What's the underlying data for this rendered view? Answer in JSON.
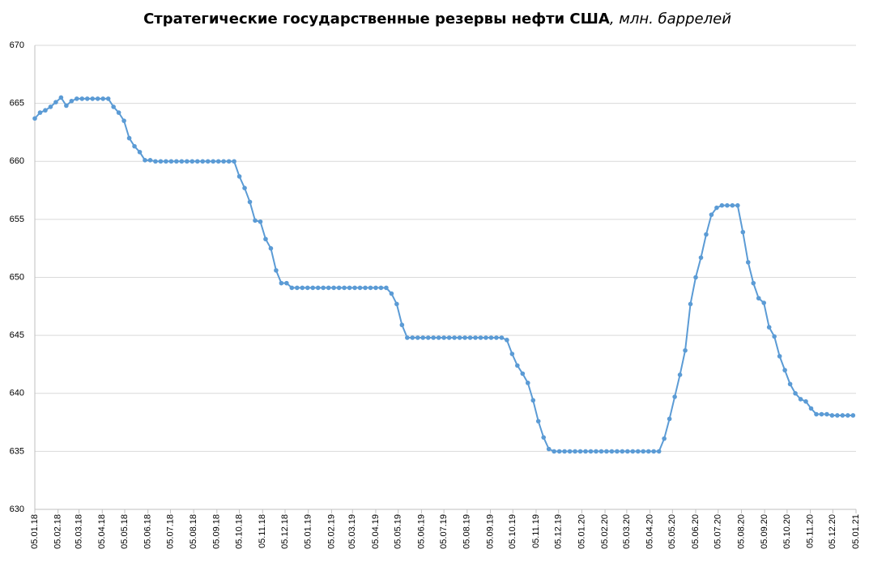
{
  "chart_data": {
    "type": "line",
    "title": "Стратегические государственные резервы нефти США",
    "title_unit": ", млн. баррелей",
    "x": [
      "05.01.18",
      "12.01.18",
      "19.01.18",
      "26.01.18",
      "02.02.18",
      "09.02.18",
      "16.02.18",
      "23.02.18",
      "02.03.18",
      "09.03.18",
      "16.03.18",
      "23.03.18",
      "30.03.18",
      "06.04.18",
      "13.04.18",
      "20.04.18",
      "27.04.18",
      "04.05.18",
      "11.05.18",
      "18.05.18",
      "25.05.18",
      "01.06.18",
      "08.06.18",
      "15.06.18",
      "22.06.18",
      "29.06.18",
      "06.07.18",
      "13.07.18",
      "20.07.18",
      "27.07.18",
      "03.08.18",
      "10.08.18",
      "17.08.18",
      "24.08.18",
      "31.08.18",
      "07.09.18",
      "14.09.18",
      "21.09.18",
      "28.09.18",
      "05.10.18",
      "12.10.18",
      "19.10.18",
      "26.10.18",
      "02.11.18",
      "09.11.18",
      "16.11.18",
      "23.11.18",
      "30.11.18",
      "07.12.18",
      "14.12.18",
      "21.12.18",
      "28.12.18",
      "04.01.19",
      "11.01.19",
      "18.01.19",
      "25.01.19",
      "01.02.19",
      "08.02.19",
      "15.02.19",
      "22.02.19",
      "01.03.19",
      "08.03.19",
      "15.03.19",
      "22.03.19",
      "29.03.19",
      "05.04.19",
      "12.04.19",
      "19.04.19",
      "26.04.19",
      "03.05.19",
      "10.05.19",
      "17.05.19",
      "24.05.19",
      "31.05.19",
      "07.06.19",
      "14.06.19",
      "21.06.19",
      "28.06.19",
      "05.07.19",
      "12.07.19",
      "19.07.19",
      "26.07.19",
      "02.08.19",
      "09.08.19",
      "16.08.19",
      "23.08.19",
      "30.08.19",
      "06.09.19",
      "13.09.19",
      "20.09.19",
      "27.09.19",
      "04.10.19",
      "11.10.19",
      "18.10.19",
      "25.10.19",
      "01.11.19",
      "08.11.19",
      "15.11.19",
      "22.11.19",
      "29.11.19",
      "06.12.19",
      "13.12.19",
      "20.12.19",
      "27.12.19",
      "03.01.20",
      "10.01.20",
      "17.01.20",
      "24.01.20",
      "31.01.20",
      "07.02.20",
      "14.02.20",
      "21.02.20",
      "28.02.20",
      "06.03.20",
      "13.03.20",
      "20.03.20",
      "27.03.20",
      "03.04.20",
      "10.04.20",
      "17.04.20",
      "24.04.20",
      "01.05.20",
      "08.05.20",
      "15.05.20",
      "22.05.20",
      "29.05.20",
      "05.06.20",
      "12.06.20",
      "19.06.20",
      "26.06.20",
      "03.07.20",
      "10.07.20",
      "17.07.20",
      "24.07.20",
      "31.07.20",
      "07.08.20",
      "14.08.20",
      "21.08.20",
      "28.08.20",
      "04.09.20",
      "11.09.20",
      "18.09.20",
      "25.09.20",
      "02.10.20",
      "09.10.20",
      "16.10.20",
      "23.10.20",
      "30.10.20",
      "06.11.20",
      "13.11.20",
      "20.11.20",
      "27.11.20",
      "04.12.20",
      "11.12.20",
      "18.12.20",
      "25.12.20",
      "01.01.21"
    ],
    "values": [
      663.7,
      664.2,
      664.4,
      664.7,
      665.1,
      665.5,
      664.8,
      665.2,
      665.4,
      665.4,
      665.4,
      665.4,
      665.4,
      665.4,
      665.4,
      664.7,
      664.2,
      663.5,
      662.0,
      661.3,
      660.8,
      660.1,
      660.1,
      660.0,
      660.0,
      660.0,
      660.0,
      660.0,
      660.0,
      660.0,
      660.0,
      660.0,
      660.0,
      660.0,
      660.0,
      660.0,
      660.0,
      660.0,
      660.0,
      658.7,
      657.7,
      656.5,
      654.9,
      654.8,
      653.3,
      652.5,
      650.6,
      649.5,
      649.5,
      649.1,
      649.1,
      649.1,
      649.1,
      649.1,
      649.1,
      649.1,
      649.1,
      649.1,
      649.1,
      649.1,
      649.1,
      649.1,
      649.1,
      649.1,
      649.1,
      649.1,
      649.1,
      649.1,
      648.6,
      647.7,
      645.9,
      644.8,
      644.8,
      644.8,
      644.8,
      644.8,
      644.8,
      644.8,
      644.8,
      644.8,
      644.8,
      644.8,
      644.8,
      644.8,
      644.8,
      644.8,
      644.8,
      644.8,
      644.8,
      644.8,
      644.6,
      643.4,
      642.4,
      641.7,
      640.9,
      639.4,
      637.6,
      636.2,
      635.2,
      635.0,
      635.0,
      635.0,
      635.0,
      635.0,
      635.0,
      635.0,
      635.0,
      635.0,
      635.0,
      635.0,
      635.0,
      635.0,
      635.0,
      635.0,
      635.0,
      635.0,
      635.0,
      635.0,
      635.0,
      635.0,
      636.1,
      637.8,
      639.7,
      641.6,
      643.7,
      647.7,
      650.0,
      651.7,
      653.7,
      655.4,
      656.0,
      656.2,
      656.2,
      656.2,
      656.2,
      653.9,
      651.3,
      649.5,
      648.2,
      647.8,
      645.7,
      644.9,
      643.2,
      642.0,
      640.8,
      640.0,
      639.5,
      639.3,
      638.7,
      638.2,
      638.2,
      638.2,
      638.1,
      638.1,
      638.1,
      638.1,
      638.1
    ],
    "color": "#5b9bd5",
    "xlim": [
      "05.01.18",
      "05.01.21"
    ],
    "xticks": [
      "05.01.18",
      "05.02.18",
      "05.03.18",
      "05.04.18",
      "05.05.18",
      "05.06.18",
      "05.07.18",
      "05.08.18",
      "05.09.18",
      "05.10.18",
      "05.11.18",
      "05.12.18",
      "05.01.19",
      "05.02.19",
      "05.03.19",
      "05.04.19",
      "05.05.19",
      "05.06.19",
      "05.07.19",
      "05.08.19",
      "05.09.19",
      "05.10.19",
      "05.11.19",
      "05.12.19",
      "05.01.20",
      "05.02.20",
      "05.03.20",
      "05.04.20",
      "05.05.20",
      "05.06.20",
      "05.07.20",
      "05.08.20",
      "05.09.20",
      "05.10.20",
      "05.11.20",
      "05.12.20",
      "05.01.21"
    ],
    "ylim": [
      630,
      670
    ],
    "yticks": [
      630,
      635,
      640,
      645,
      650,
      655,
      660,
      665,
      670
    ],
    "grid": true
  }
}
